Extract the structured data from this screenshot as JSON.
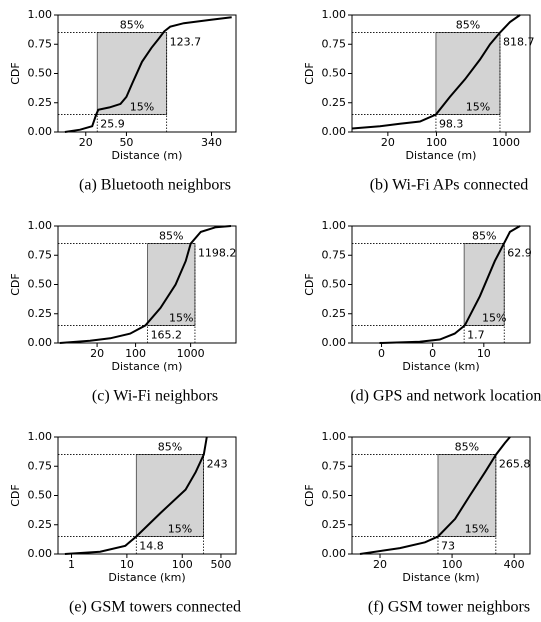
{
  "chart_data": [
    {
      "type": "line",
      "caption": "(a) Bluetooth neighbors",
      "xlabel": "Distance (m)",
      "ylabel": "CDF",
      "log_x": true,
      "color": "#000000",
      "band_color": "#d3d3d3",
      "xlim": [
        10.7,
        590
      ],
      "ylim": [
        0,
        1
      ],
      "xticks": [
        20,
        50,
        340
      ],
      "yticks": [
        {
          "value": 0,
          "label": "0.00"
        },
        {
          "value": 0.25,
          "label": "0.25"
        },
        {
          "value": 0.5,
          "label": "0.50"
        },
        {
          "value": 0.75,
          "label": "0.75"
        },
        {
          "value": 1,
          "label": "1.00"
        }
      ],
      "x": [
        12.5,
        17.6,
        23.1,
        25.3,
        26.5,
        34.1,
        43.7,
        50,
        57.3,
        71,
        88,
        104,
        117,
        134,
        182,
        337,
        535
      ],
      "values": [
        0,
        0.02,
        0.05,
        0.15,
        0.19,
        0.21,
        0.24,
        0.3,
        0.42,
        0.6,
        0.72,
        0.8,
        0.86,
        0.9,
        0.93,
        0.96,
        0.98
      ],
      "percentiles": [
        {
          "x": 25.9,
          "y": {
            "value": 0.15,
            "label": "15%"
          }
        },
        {
          "x": 123.7,
          "y": {
            "value": 0.85,
            "label": "85%"
          }
        }
      ]
    },
    {
      "type": "line",
      "caption": "(b) Wi-Fi APs connected",
      "xlabel": "Distance (m)",
      "ylabel": "CDF",
      "log_x": true,
      "color": "#000000",
      "band_color": "#d3d3d3",
      "xlim": [
        6.1,
        2214
      ],
      "ylim": [
        0,
        1
      ],
      "xticks": [
        20,
        100,
        1000
      ],
      "yticks": [
        {
          "value": 0,
          "label": "0.00"
        },
        {
          "value": 0.25,
          "label": "0.25"
        },
        {
          "value": 0.5,
          "label": "0.50"
        },
        {
          "value": 0.75,
          "label": "0.75"
        },
        {
          "value": 1,
          "label": "1.00"
        }
      ],
      "x": [
        6.1,
        15.4,
        29.8,
        57.9,
        98.3,
        156,
        257,
        423,
        588,
        818.7,
        1141,
        1589
      ],
      "values": [
        0.03,
        0.05,
        0.07,
        0.09,
        0.15,
        0.3,
        0.45,
        0.62,
        0.75,
        0.85,
        0.94,
        1.0
      ],
      "percentiles": [
        {
          "x": 98.3,
          "y": {
            "value": 0.15,
            "label": "15%"
          }
        },
        {
          "x": 818.7,
          "y": {
            "value": 0.85,
            "label": "85%"
          }
        }
      ]
    },
    {
      "type": "line",
      "caption": "(c) Wi-Fi neighbors",
      "xlabel": "Distance (m)",
      "ylabel": "CDF",
      "log_x": true,
      "color": "#000000",
      "band_color": "#d3d3d3",
      "xlim": [
        3.9,
        6670
      ],
      "ylim": [
        0,
        1
      ],
      "xticks": [
        20,
        100,
        1000
      ],
      "yticks": [
        {
          "value": 0,
          "label": "0.00"
        },
        {
          "value": 0.25,
          "label": "0.25"
        },
        {
          "value": 0.5,
          "label": "0.50"
        },
        {
          "value": 0.75,
          "label": "0.75"
        },
        {
          "value": 1,
          "label": "1.00"
        }
      ],
      "x": [
        4.2,
        14.9,
        34.6,
        80,
        151,
        284,
        533,
        813,
        1002,
        1528,
        2871,
        5408
      ],
      "values": [
        0.0,
        0.02,
        0.04,
        0.08,
        0.15,
        0.3,
        0.5,
        0.7,
        0.85,
        0.95,
        0.99,
        1.0
      ],
      "percentiles": [
        {
          "x": 165.2,
          "y": {
            "value": 0.15,
            "label": "15%"
          }
        },
        {
          "x": 1198.2,
          "y": {
            "value": 0.85,
            "label": "85%"
          }
        }
      ]
    },
    {
      "type": "line",
      "caption": "(d) GPS and network locations",
      "xlabel": "Distance (km)",
      "ylabel": "CDF",
      "log_x": true,
      "color": "#000000",
      "band_color": "#d3d3d3",
      "xlim": [
        7e-05,
        640
      ],
      "ylim": [
        0,
        1
      ],
      "xticks": [
        {
          "value": 0.001,
          "label": "0"
        },
        {
          "value": 0.1,
          "label": "0"
        },
        10
      ],
      "yticks": [
        {
          "value": 0,
          "label": "0.00"
        },
        {
          "value": 0.25,
          "label": "0.25"
        },
        {
          "value": 0.5,
          "label": "0.50"
        },
        {
          "value": 0.75,
          "label": "0.75"
        },
        {
          "value": 1,
          "label": "1.00"
        }
      ],
      "x": [
        0.00083,
        0.031,
        0.19,
        0.73,
        1.8,
        7,
        27,
        61,
        105,
        259
      ],
      "values": [
        0.0,
        0.01,
        0.03,
        0.08,
        0.15,
        0.4,
        0.7,
        0.85,
        0.95,
        1.0
      ],
      "percentiles": [
        {
          "x": 1.7,
          "y": {
            "value": 0.15,
            "label": "15%"
          }
        },
        {
          "x": 62.9,
          "y": {
            "value": 0.85,
            "label": "85%"
          }
        }
      ]
    },
    {
      "type": "line",
      "caption": "(e) GSM towers connected",
      "xlabel": "Distance (km)",
      "ylabel": "CDF",
      "log_x": true,
      "color": "#000000",
      "band_color": "#d3d3d3",
      "xlim": [
        0.57,
        935
      ],
      "ylim": [
        0,
        1
      ],
      "xticks": [
        1,
        10,
        100,
        500
      ],
      "yticks": [
        {
          "value": 0,
          "label": "0.00"
        },
        {
          "value": 0.25,
          "label": "0.25"
        },
        {
          "value": 0.5,
          "label": "0.50"
        },
        {
          "value": 0.75,
          "label": "0.75"
        },
        {
          "value": 1,
          "label": "1.00"
        }
      ],
      "x": [
        0.76,
        3.28,
        9.35,
        14.8,
        40.5,
        115,
        175,
        245,
        278
      ],
      "values": [
        0.0,
        0.02,
        0.07,
        0.15,
        0.35,
        0.55,
        0.7,
        0.85,
        1.0
      ],
      "percentiles": [
        {
          "x": 14.8,
          "y": {
            "value": 0.15,
            "label": "15%"
          }
        },
        {
          "x": 243.0,
          "y": {
            "value": 0.85,
            "label": "85%"
          }
        }
      ]
    },
    {
      "type": "line",
      "caption": "(f) GSM tower neighbors",
      "xlabel": "Distance (km)",
      "ylabel": "CDF",
      "log_x": true,
      "color": "#000000",
      "band_color": "#d3d3d3",
      "xlim": [
        10.7,
        570
      ],
      "ylim": [
        0,
        1
      ],
      "xticks": [
        20,
        100,
        400
      ],
      "yticks": [
        {
          "value": 0,
          "label": "0.00"
        },
        {
          "value": 0.25,
          "label": "0.25"
        },
        {
          "value": 0.5,
          "label": "0.50"
        },
        {
          "value": 0.75,
          "label": "0.75"
        },
        {
          "value": 1,
          "label": "1.00"
        }
      ],
      "x": [
        12.8,
        31.2,
        54.6,
        73,
        107,
        149,
        209,
        267,
        326,
        365
      ],
      "values": [
        0.0,
        0.05,
        0.1,
        0.15,
        0.3,
        0.5,
        0.7,
        0.85,
        0.95,
        1.0
      ],
      "percentiles": [
        {
          "x": 73.0,
          "y": {
            "value": 0.15,
            "label": "15%"
          }
        },
        {
          "x": 265.8,
          "y": {
            "value": 0.85,
            "label": "85%"
          }
        }
      ]
    }
  ]
}
